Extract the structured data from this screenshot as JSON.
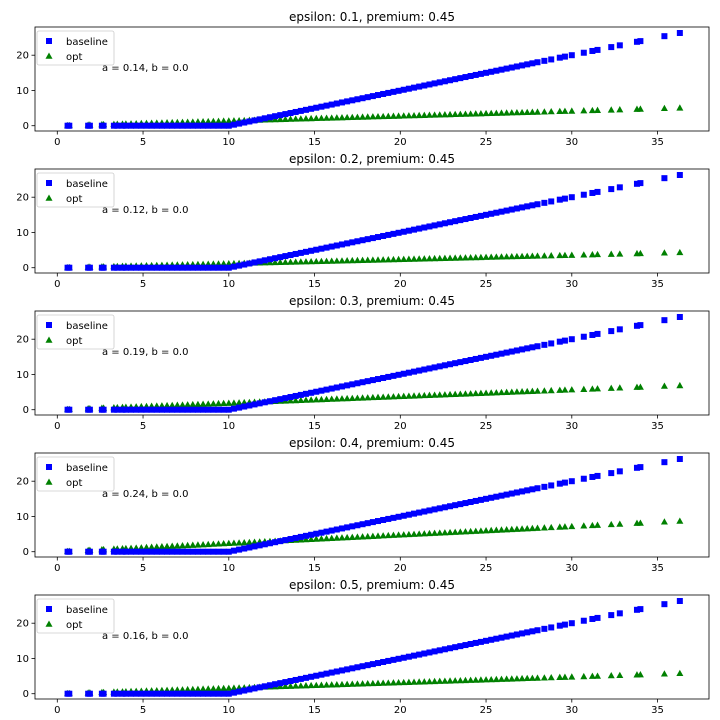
{
  "chart_data": [
    {
      "type": "scatter",
      "title": "epsilon: 0.1, premium: 0.45",
      "annotation": "a = 0.14, b = 0.0",
      "xlabel": "",
      "ylabel": "",
      "xlim": [
        -1.3,
        38.0
      ],
      "ylim": [
        -1.5,
        28.0
      ],
      "xticks": [
        0,
        5,
        10,
        15,
        20,
        25,
        30,
        35
      ],
      "yticks": [
        0,
        10,
        20
      ],
      "grid": false,
      "legend_position": "top-left",
      "series": [
        {
          "name": "baseline",
          "marker": "square",
          "color": "#0000ff"
        },
        {
          "name": "opt",
          "marker": "triangle",
          "color": "#008000",
          "slope": 0.14,
          "intercept": 0.0
        }
      ]
    },
    {
      "type": "scatter",
      "title": "epsilon: 0.2, premium: 0.45",
      "annotation": "a = 0.12, b = 0.0",
      "xlabel": "",
      "ylabel": "",
      "xlim": [
        -1.3,
        38.0
      ],
      "ylim": [
        -1.5,
        28.0
      ],
      "xticks": [
        0,
        5,
        10,
        15,
        20,
        25,
        30,
        35
      ],
      "yticks": [
        0,
        10,
        20
      ],
      "grid": false,
      "legend_position": "top-left",
      "series": [
        {
          "name": "baseline",
          "marker": "square",
          "color": "#0000ff"
        },
        {
          "name": "opt",
          "marker": "triangle",
          "color": "#008000",
          "slope": 0.12,
          "intercept": 0.0
        }
      ]
    },
    {
      "type": "scatter",
      "title": "epsilon: 0.3, premium: 0.45",
      "annotation": "a = 0.19, b = 0.0",
      "xlabel": "",
      "ylabel": "",
      "xlim": [
        -1.3,
        38.0
      ],
      "ylim": [
        -1.5,
        28.0
      ],
      "xticks": [
        0,
        5,
        10,
        15,
        20,
        25,
        30,
        35
      ],
      "yticks": [
        0,
        10,
        20
      ],
      "grid": false,
      "legend_position": "top-left",
      "series": [
        {
          "name": "baseline",
          "marker": "square",
          "color": "#0000ff"
        },
        {
          "name": "opt",
          "marker": "triangle",
          "color": "#008000",
          "slope": 0.19,
          "intercept": 0.0
        }
      ]
    },
    {
      "type": "scatter",
      "title": "epsilon: 0.4, premium: 0.45",
      "annotation": "a = 0.24, b = 0.0",
      "xlabel": "",
      "ylabel": "",
      "xlim": [
        -1.3,
        38.0
      ],
      "ylim": [
        -1.5,
        28.0
      ],
      "xticks": [
        0,
        5,
        10,
        15,
        20,
        25,
        30,
        35
      ],
      "yticks": [
        0,
        10,
        20
      ],
      "grid": false,
      "legend_position": "top-left",
      "series": [
        {
          "name": "baseline",
          "marker": "square",
          "color": "#0000ff"
        },
        {
          "name": "opt",
          "marker": "triangle",
          "color": "#008000",
          "slope": 0.24,
          "intercept": 0.0
        }
      ]
    },
    {
      "type": "scatter",
      "title": "epsilon: 0.5, premium: 0.45",
      "annotation": "a = 0.16, b = 0.0",
      "xlabel": "",
      "ylabel": "",
      "xlim": [
        -1.3,
        38.0
      ],
      "ylim": [
        -1.5,
        28.0
      ],
      "xticks": [
        0,
        5,
        10,
        15,
        20,
        25,
        30,
        35
      ],
      "yticks": [
        0,
        10,
        20
      ],
      "grid": false,
      "legend_position": "top-left",
      "series": [
        {
          "name": "baseline",
          "marker": "square",
          "color": "#0000ff"
        },
        {
          "name": "opt",
          "marker": "triangle",
          "color": "#008000",
          "slope": 0.16,
          "intercept": 0.0
        }
      ]
    }
  ],
  "sample_x": [
    0.6,
    0.7,
    1.8,
    1.9,
    2.6,
    2.7,
    3.3,
    3.5,
    3.8,
    4.0,
    4.3,
    4.6,
    4.9,
    5.2,
    5.5,
    5.8,
    6.1,
    6.4,
    6.7,
    7.0,
    7.3,
    7.6,
    7.9,
    8.2,
    8.5,
    8.8,
    9.1,
    9.4,
    9.7,
    10.0,
    10.3,
    10.6,
    10.9,
    11.2,
    11.5,
    11.8,
    12.1,
    12.4,
    12.7,
    13.0,
    13.3,
    13.6,
    13.9,
    14.2,
    14.5,
    14.8,
    15.1,
    15.4,
    15.7,
    16.0,
    16.3,
    16.6,
    16.9,
    17.2,
    17.5,
    17.8,
    18.1,
    18.4,
    18.7,
    19.0,
    19.3,
    19.6,
    19.9,
    20.2,
    20.5,
    20.8,
    21.1,
    21.4,
    21.7,
    22.0,
    22.3,
    22.6,
    22.9,
    23.2,
    23.5,
    23.8,
    24.1,
    24.4,
    24.7,
    25.0,
    25.3,
    25.6,
    25.9,
    26.2,
    26.5,
    26.8,
    27.1,
    27.4,
    27.7,
    28.0,
    28.4,
    28.8,
    29.3,
    29.6,
    30.0,
    30.7,
    31.2,
    31.5,
    32.3,
    32.8,
    33.8,
    34.0,
    35.4,
    36.3
  ],
  "baseline_threshold": 10.0
}
